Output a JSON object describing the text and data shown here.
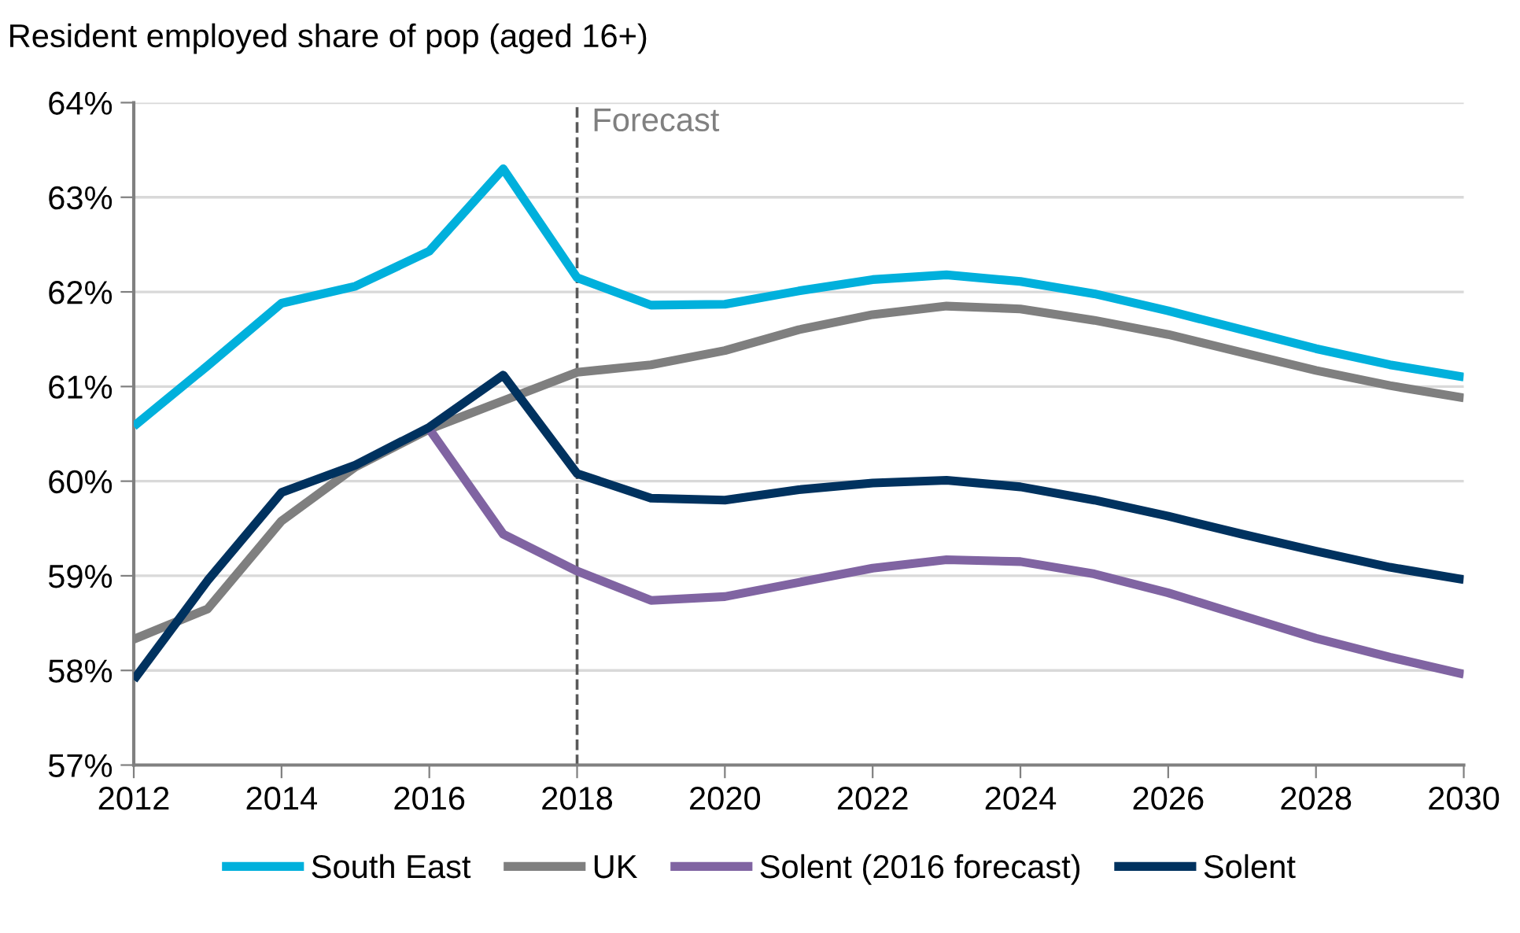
{
  "chart_data": {
    "type": "line",
    "title": "Resident employed share of pop (aged 16+)",
    "x": [
      2012,
      2013,
      2014,
      2015,
      2016,
      2017,
      2018,
      2019,
      2020,
      2021,
      2022,
      2023,
      2024,
      2025,
      2026,
      2027,
      2028,
      2029,
      2030
    ],
    "series": [
      {
        "name": "South East",
        "color": "#00b0dc",
        "values": [
          60.58,
          61.22,
          61.88,
          62.06,
          62.43,
          63.3,
          62.15,
          61.86,
          61.87,
          62.01,
          62.13,
          62.18,
          62.11,
          61.98,
          61.8,
          61.6,
          61.4,
          61.23,
          61.1
        ]
      },
      {
        "name": "UK",
        "color": "#7f7f7f",
        "values": [
          58.33,
          58.65,
          59.58,
          60.15,
          60.55,
          60.85,
          61.15,
          61.23,
          61.38,
          61.6,
          61.76,
          61.85,
          61.82,
          61.7,
          61.55,
          61.36,
          61.17,
          61.01,
          60.88
        ]
      },
      {
        "name": "Solent (2016 forecast)",
        "color": "#8064a2",
        "values": [
          null,
          null,
          null,
          null,
          60.55,
          59.44,
          59.05,
          58.74,
          58.78,
          58.93,
          59.08,
          59.17,
          59.15,
          59.02,
          58.82,
          58.58,
          58.34,
          58.14,
          57.96
        ]
      },
      {
        "name": "Solent",
        "color": "#00325f",
        "values": [
          57.9,
          58.95,
          59.88,
          60.17,
          60.57,
          61.12,
          60.08,
          59.82,
          59.8,
          59.91,
          59.98,
          60.01,
          59.94,
          59.8,
          59.63,
          59.44,
          59.26,
          59.09,
          58.96
        ]
      }
    ],
    "xlim": [
      2012,
      2030
    ],
    "xticks": [
      2012,
      2014,
      2016,
      2018,
      2020,
      2022,
      2024,
      2026,
      2028,
      2030
    ],
    "ylim": [
      57,
      64
    ],
    "yticks": [
      {
        "value": 57,
        "label": "57%"
      },
      {
        "value": 58,
        "label": "58%"
      },
      {
        "value": 59,
        "label": "59%"
      },
      {
        "value": 60,
        "label": "60%"
      },
      {
        "value": 61,
        "label": "61%"
      },
      {
        "value": 62,
        "label": "62%"
      },
      {
        "value": 63,
        "label": "63%"
      },
      {
        "value": 64,
        "label": "64%"
      }
    ],
    "ref_lines": [
      {
        "axis": "x",
        "value": 2018,
        "label": "Forecast",
        "color": "#595959",
        "line_style": "dashed"
      }
    ],
    "grid": "y",
    "legend": "bottom",
    "marker": "none",
    "line_style": "solid"
  }
}
